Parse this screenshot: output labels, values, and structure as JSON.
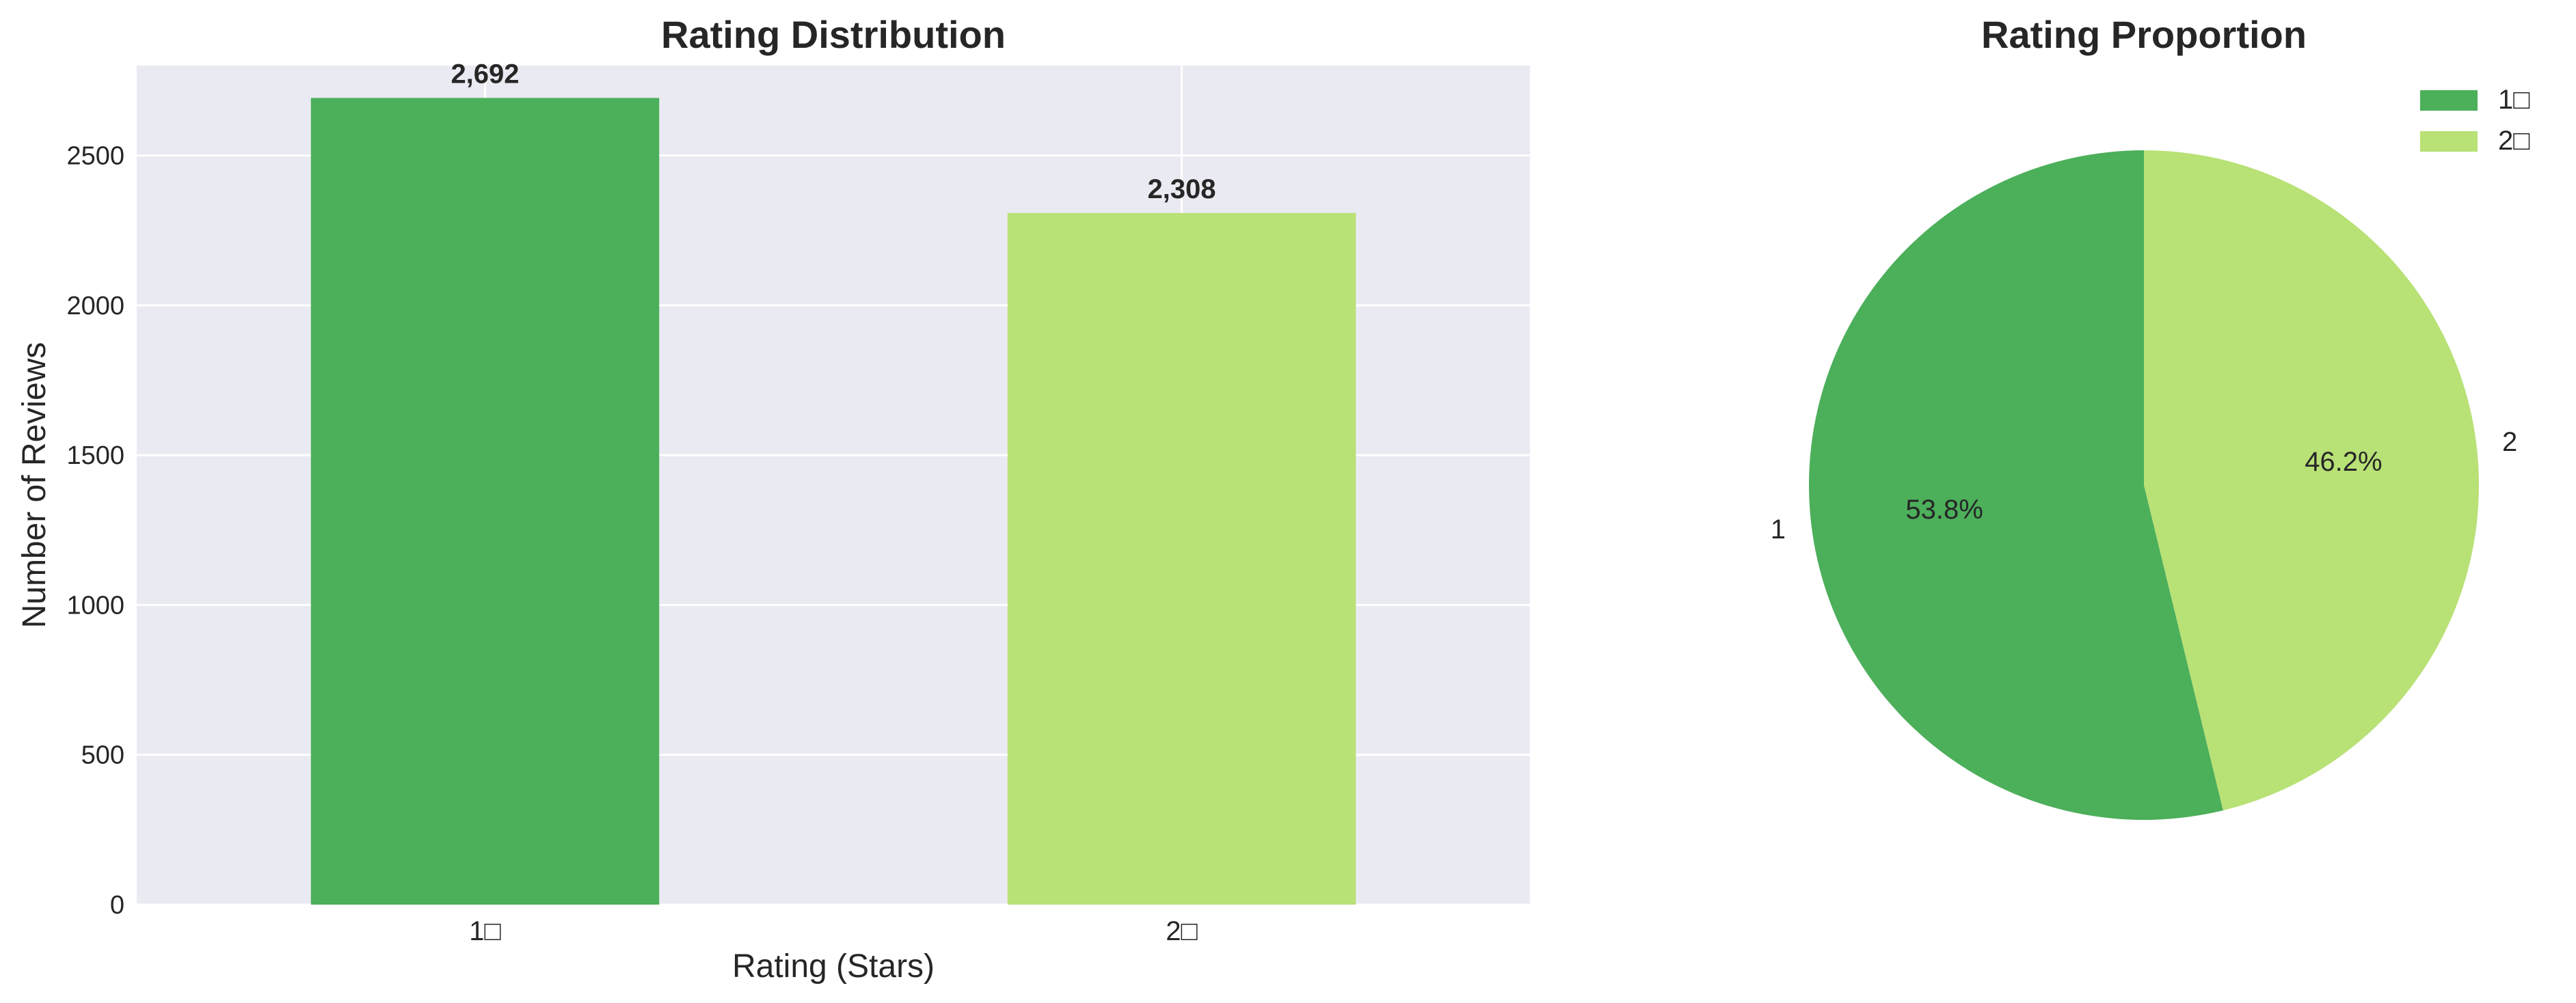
{
  "chart_data": [
    {
      "type": "bar",
      "title": "Rating Distribution",
      "xlabel": "Rating (Stars)",
      "ylabel": "Number of Reviews",
      "categories": [
        "1□",
        "2□"
      ],
      "values": [
        2692,
        2308
      ],
      "value_labels": [
        "2,692",
        "2,308"
      ],
      "colors": [
        "#4caf5a",
        "#b8e176"
      ],
      "ylim": [
        0,
        2800
      ],
      "yticks": [
        0,
        500,
        1000,
        1500,
        2000,
        2500
      ],
      "ytick_labels": [
        "0",
        "500",
        "1000",
        "1500",
        "2000",
        "2500"
      ],
      "grid": true,
      "background": "#eaeaf2"
    },
    {
      "type": "pie",
      "title": "Rating Proportion",
      "labels": [
        "1",
        "2"
      ],
      "values": [
        53.8,
        46.2
      ],
      "pct_labels": [
        "53.8%",
        "46.2%"
      ],
      "colors": [
        "#4caf5a",
        "#b8e176"
      ],
      "start_angle": 90,
      "direction": "counterclockwise",
      "legend": {
        "position": "top-right",
        "entries": [
          "1□",
          "2□"
        ]
      }
    }
  ]
}
